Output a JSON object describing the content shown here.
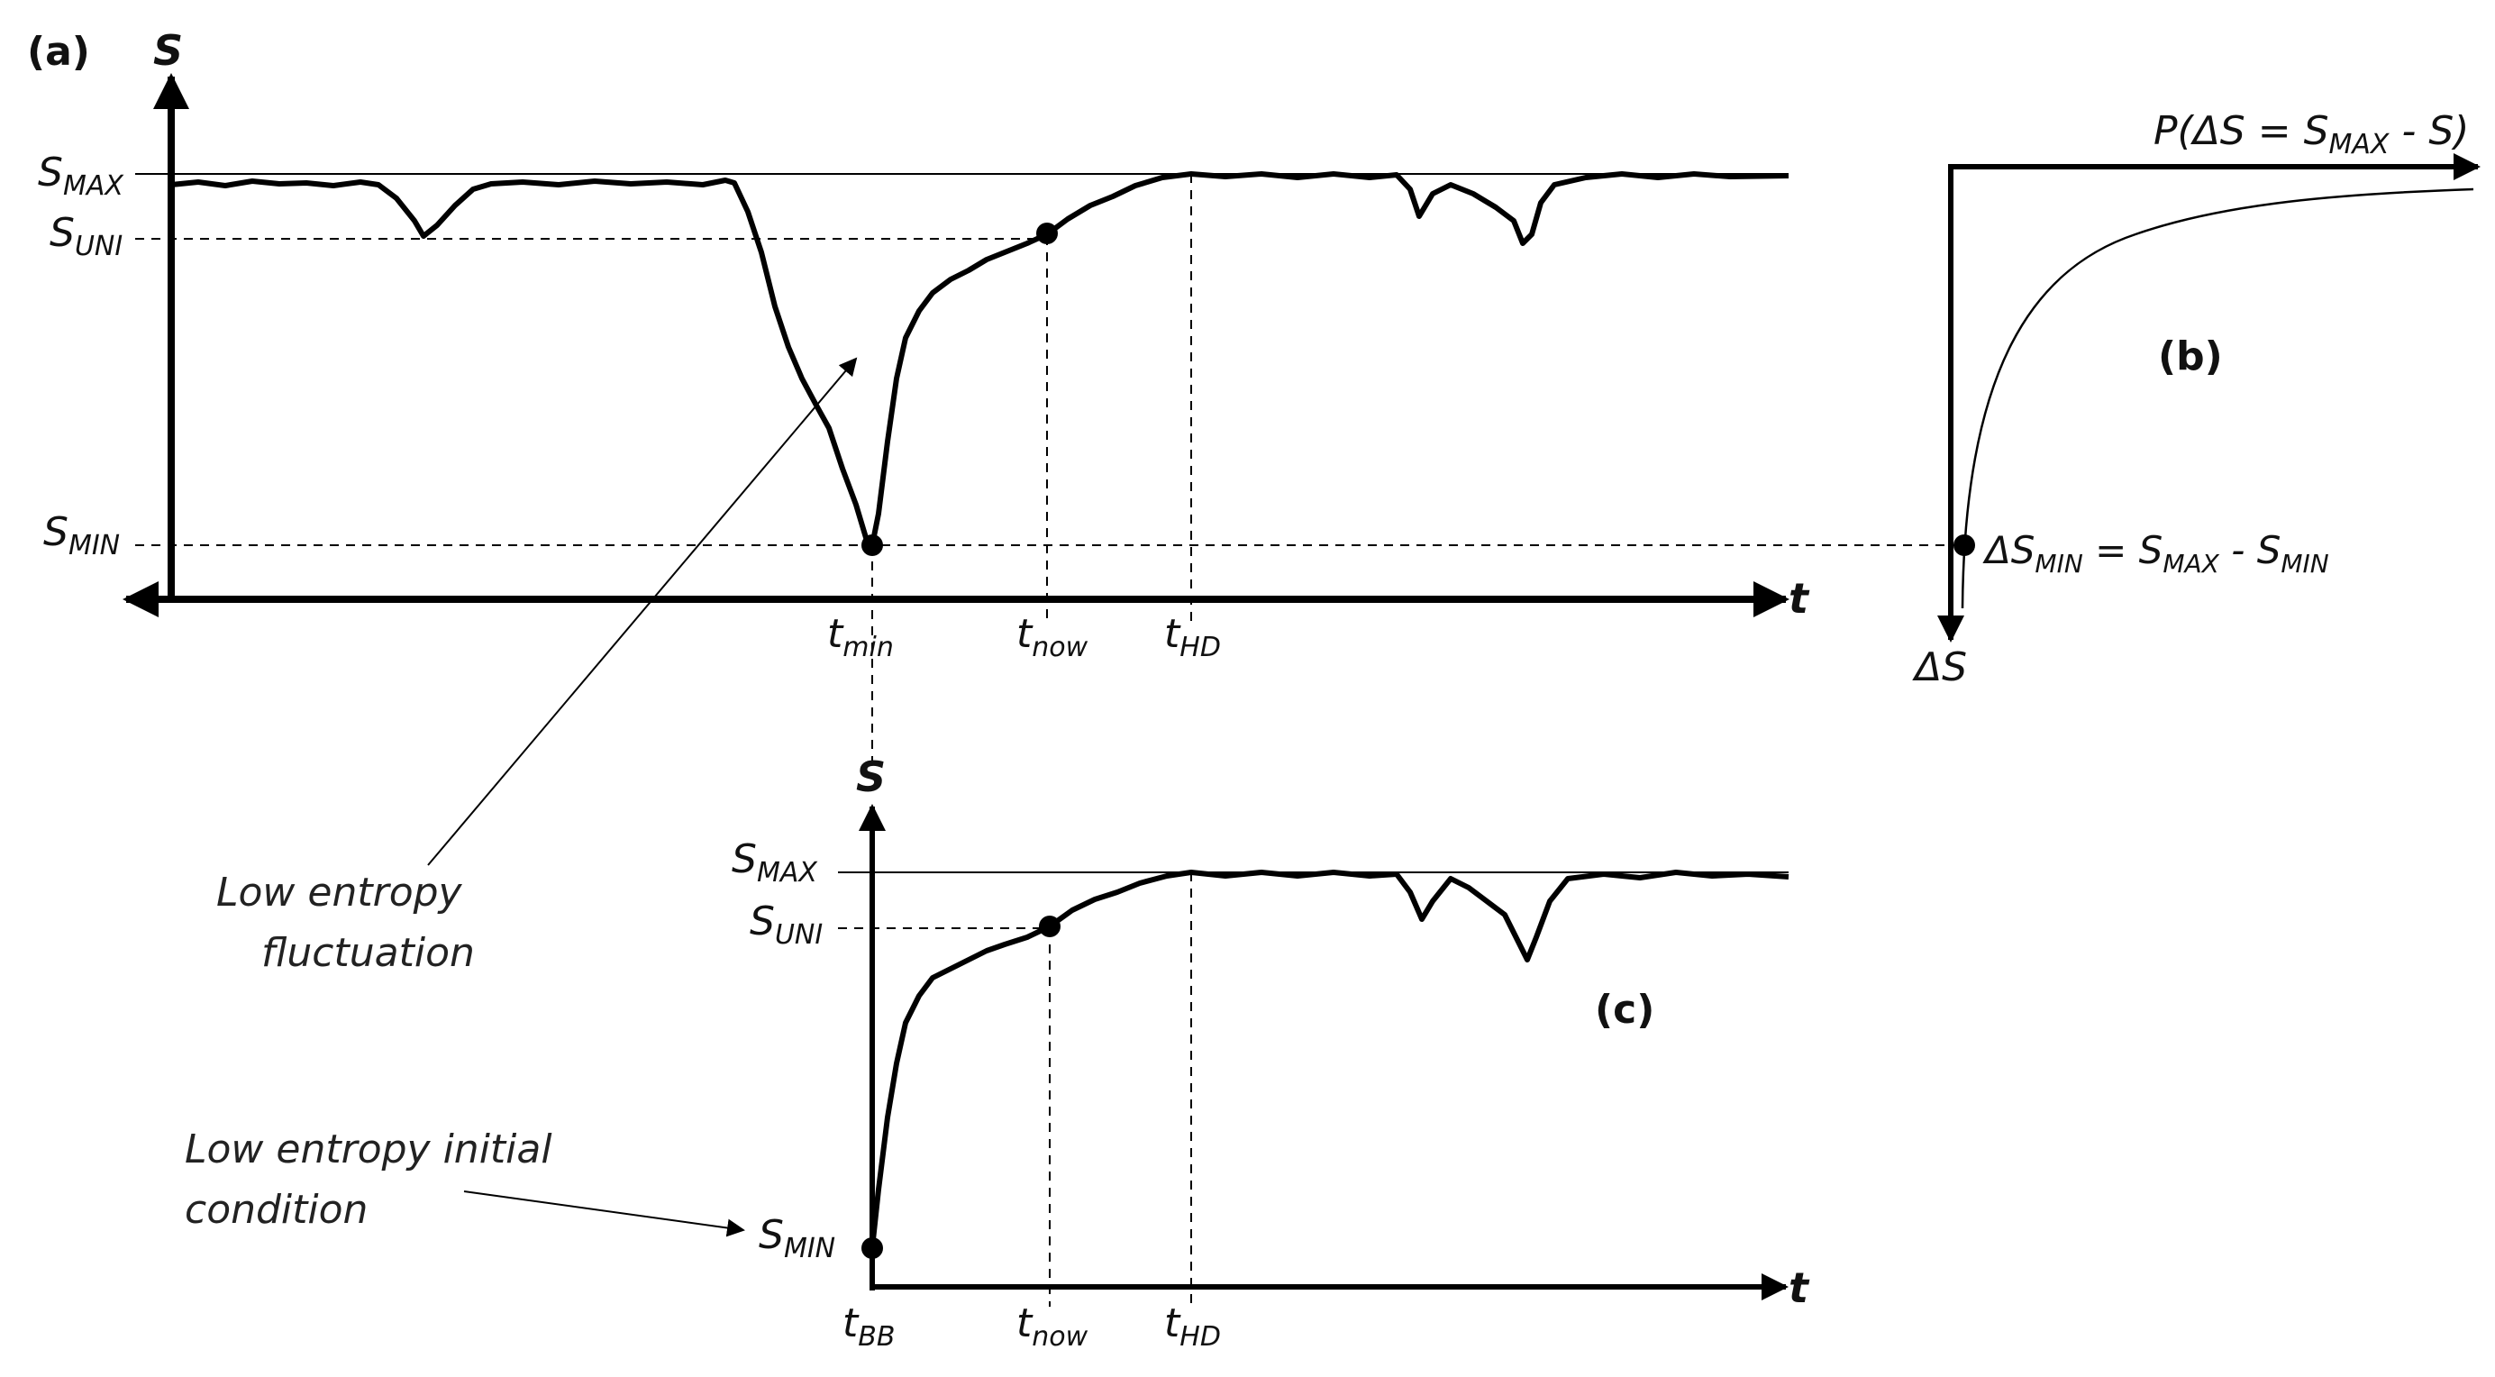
{
  "panels": {
    "a": {
      "panel_label": "(a)",
      "y_axis_label": "S",
      "x_axis_label": "t",
      "y_ticks": {
        "max_main": "S",
        "max_sub": "MAX",
        "uni_main": "S",
        "uni_sub": "UNI",
        "min_main": "S",
        "min_sub": "MIN"
      },
      "x_ticks": {
        "tmin_main": "t",
        "tmin_sub": "min",
        "tnow_main": "t",
        "tnow_sub": "now",
        "thd_main": "t",
        "thd_sub": "HD"
      },
      "annotation": {
        "line1": "Low entropy",
        "line2": "fluctuation"
      }
    },
    "b": {
      "panel_label": "(b)",
      "x_axis_label_parts": {
        "prefix": "P(ΔS = S",
        "sub1": "MAX",
        "suffix": " - S)"
      },
      "y_axis_label": "ΔS",
      "point_label_parts": {
        "a": "ΔS",
        "a_sub": "MIN",
        "b": " = S",
        "b_sub": "MAX",
        "c": " - S",
        "c_sub": "MIN"
      }
    },
    "c": {
      "panel_label": "(c)",
      "y_axis_label": "S",
      "x_axis_label": "t",
      "y_ticks": {
        "max_main": "S",
        "max_sub": "MAX",
        "uni_main": "S",
        "uni_sub": "UNI",
        "min_main": "S",
        "min_sub": "MIN"
      },
      "x_ticks": {
        "tbb_main": "t",
        "tbb_sub": "BB",
        "tnow_main": "t",
        "tnow_sub": "now",
        "thd_main": "t",
        "thd_sub": "HD"
      },
      "annotation": {
        "line1": "Low entropy initial",
        "line2": "condition"
      }
    }
  }
}
